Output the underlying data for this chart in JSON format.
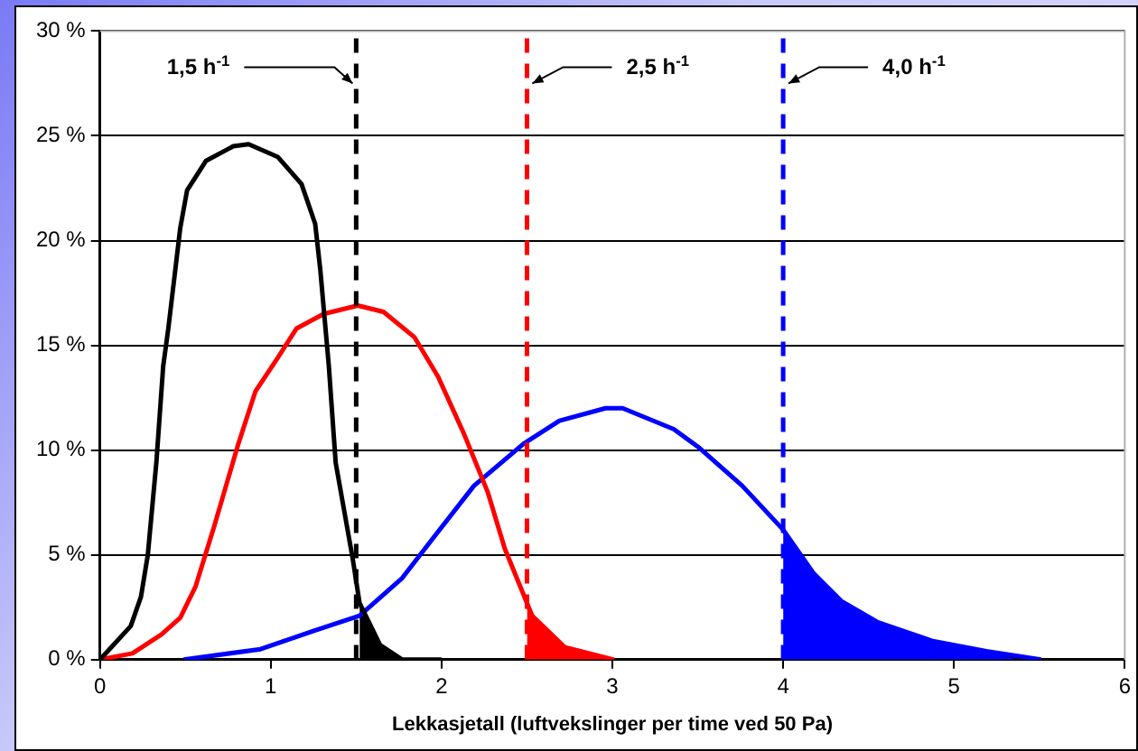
{
  "chart_data": {
    "type": "line",
    "xlabel": "Lekkasjetall (luftvekslinger per time ved 50 Pa)",
    "series": [
      {
        "color": "#000000",
        "x": [
          0,
          0.18,
          0.24,
          0.28,
          0.33,
          0.37,
          0.4,
          0.47,
          0.51,
          0.62,
          0.78,
          0.87,
          1.04,
          1.18,
          1.26,
          1.29,
          1.34,
          1.38,
          1.48,
          1.52,
          1.64,
          1.77,
          2.0
        ],
        "values": [
          0,
          1.6,
          3,
          5,
          9.4,
          14,
          15.8,
          20.6,
          22.4,
          23.8,
          24.5,
          24.6,
          24,
          22.7,
          20.8,
          18.6,
          14,
          9.4,
          4.8,
          2.7,
          0.7,
          0,
          0
        ]
      },
      {
        "color": "#ff0000",
        "x": [
          0,
          0.19,
          0.36,
          0.47,
          0.56,
          0.67,
          0.81,
          0.91,
          1.04,
          1.15,
          1.31,
          1.51,
          1.66,
          1.84,
          1.98,
          2.13,
          2.27,
          2.37,
          2.46,
          2.53,
          2.72,
          3.01
        ],
        "values": [
          0,
          0.3,
          1.2,
          2,
          3.5,
          6.4,
          10.3,
          12.8,
          14.4,
          15.8,
          16.5,
          16.9,
          16.6,
          15.4,
          13.5,
          10.8,
          8,
          5.3,
          3.5,
          2.1,
          0.6,
          0
        ]
      },
      {
        "color": "#0000ff",
        "x": [
          0.49,
          0.94,
          1.26,
          1.52,
          1.77,
          1.95,
          2.19,
          2.48,
          2.69,
          2.96,
          3.06,
          3.36,
          3.51,
          3.76,
          4.0,
          4.18,
          4.34,
          4.55,
          4.87,
          5.19,
          5.51
        ],
        "values": [
          0,
          0.5,
          1.4,
          2.1,
          3.9,
          5.8,
          8.3,
          10.3,
          11.4,
          12,
          12,
          11,
          10.1,
          8.3,
          6.2,
          4.1,
          2.8,
          1.8,
          0.9,
          0.4,
          0
        ]
      },
      {
        "type": "area",
        "color": "#000000",
        "x": [
          1.52,
          1.64,
          1.77
        ],
        "values": [
          2.7,
          0.7,
          0
        ]
      },
      {
        "type": "area",
        "color": "#ff0000",
        "x": [
          2.5,
          2.53,
          2.72,
          3.01
        ],
        "values": [
          2.7,
          2.1,
          0.6,
          0
        ]
      },
      {
        "type": "area",
        "color": "#0000ff",
        "x": [
          4.0,
          4.18,
          4.34,
          4.55,
          4.87,
          5.19,
          5.4
        ],
        "values": [
          6.2,
          4.1,
          2.8,
          1.8,
          0.9,
          0.4,
          0
        ]
      }
    ],
    "ref_lines": [
      {
        "axis": "x",
        "value": 1.5,
        "label": "1,5 h$^{-1}$",
        "color": "#000000",
        "line_style": "dashed"
      },
      {
        "axis": "x",
        "value": 2.5,
        "label": "2,5 h$^{-1}$",
        "color": "#ff0000",
        "line_style": "dashed"
      },
      {
        "axis": "x",
        "value": 4.0,
        "label": "4,0 h$^{-1}$",
        "color": "#0000ff",
        "line_style": "dashed"
      }
    ],
    "xlim": [
      0,
      6
    ],
    "xticks": [
      0,
      1,
      2,
      3,
      4,
      5,
      6
    ],
    "ylim": [
      0,
      30
    ],
    "yticks": [
      {
        "value": 0,
        "label": "0 %"
      },
      {
        "value": 5,
        "label": "5 %"
      },
      {
        "value": 10,
        "label": "10 %"
      },
      {
        "value": 15,
        "label": "15 %"
      },
      {
        "value": 20,
        "label": "20 %"
      },
      {
        "value": 25,
        "label": "25 %"
      },
      {
        "value": 30,
        "label": "30 %"
      }
    ],
    "grid": "y",
    "legend": false,
    "marker": "none",
    "line_style": "solid"
  }
}
